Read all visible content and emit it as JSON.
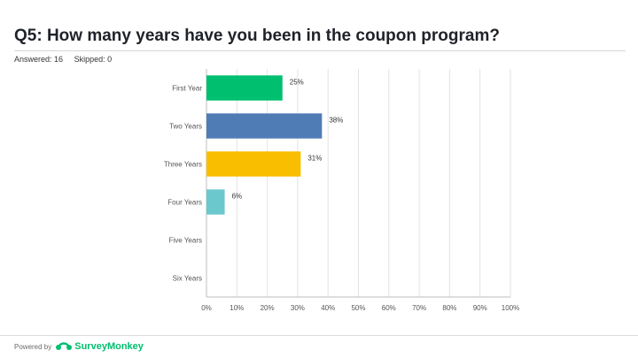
{
  "question": {
    "title": "Q5: How many years have you been in the coupon program?",
    "answered": "Answered: 16",
    "skipped": "Skipped: 0"
  },
  "footer": {
    "powered_by": "Powered by",
    "brand": "SurveyMonkey",
    "brand_color": "#00bf6f"
  },
  "chart_data": {
    "type": "bar",
    "orientation": "horizontal",
    "categories": [
      "First Year",
      "Two Years",
      "Three Years",
      "Four Years",
      "Five Years",
      "Six Years"
    ],
    "values": [
      25,
      38,
      31,
      6,
      0,
      0
    ],
    "value_labels": [
      "25%",
      "38%",
      "31%",
      "6%",
      "",
      ""
    ],
    "colors": [
      "#00bf6f",
      "#507cb6",
      "#f9be00",
      "#6bc8cd",
      "#cccccc",
      "#cccccc"
    ],
    "x_ticks": [
      "0%",
      "10%",
      "20%",
      "30%",
      "40%",
      "50%",
      "60%",
      "70%",
      "80%",
      "90%",
      "100%"
    ],
    "xlim": [
      0,
      100
    ],
    "grid": true,
    "legend": "none"
  }
}
